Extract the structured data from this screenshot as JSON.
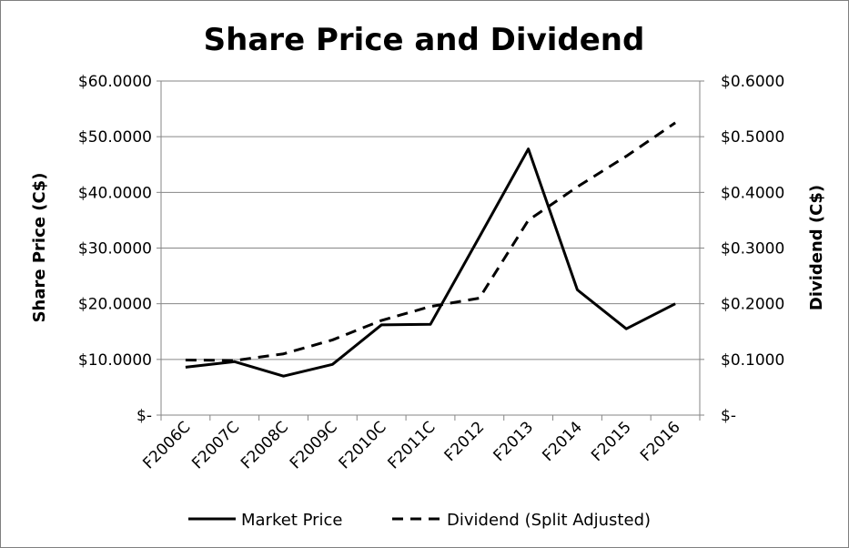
{
  "chart_data": {
    "type": "line",
    "title": "Share Price and Dividend",
    "categories": [
      "F2006C",
      "F2007C",
      "F2008C",
      "F2009C",
      "F2010C",
      "F2011C",
      "F2012",
      "F2013",
      "F2014",
      "F2015",
      "F2016"
    ],
    "y_left": {
      "label": "Share Price (C$)",
      "range": [
        0,
        60
      ],
      "ticks": [
        0,
        10,
        20,
        30,
        40,
        50,
        60
      ],
      "tick_labels": [
        "$-",
        "$10.0000",
        "$20.0000",
        "$30.0000",
        "$40.0000",
        "$50.0000",
        "$60.0000"
      ]
    },
    "y_right": {
      "label": "Dividend (C$)",
      "range": [
        0,
        0.6
      ],
      "ticks": [
        0,
        0.1,
        0.2,
        0.3,
        0.4,
        0.5,
        0.6
      ],
      "tick_labels": [
        "$-",
        "$0.1000",
        "$0.2000",
        "$0.3000",
        "$0.4000",
        "$0.5000",
        "$0.6000"
      ]
    },
    "series": [
      {
        "name": "Market Price",
        "axis": "left",
        "style": "solid",
        "values": [
          8.6,
          9.6,
          7.0,
          9.1,
          16.2,
          16.3,
          32.0,
          47.8,
          22.5,
          15.5,
          20.0
        ]
      },
      {
        "name": "Dividend (Split Adjusted)",
        "axis": "right",
        "style": "dashed",
        "values": [
          0.099,
          0.098,
          0.11,
          0.135,
          0.17,
          0.195,
          0.21,
          0.35,
          0.41,
          0.465,
          0.525
        ]
      }
    ],
    "grid": true,
    "legend_position": "bottom",
    "colors": {
      "line": "#000000",
      "grid": "#868686",
      "frame": "#7f7f7f"
    }
  }
}
